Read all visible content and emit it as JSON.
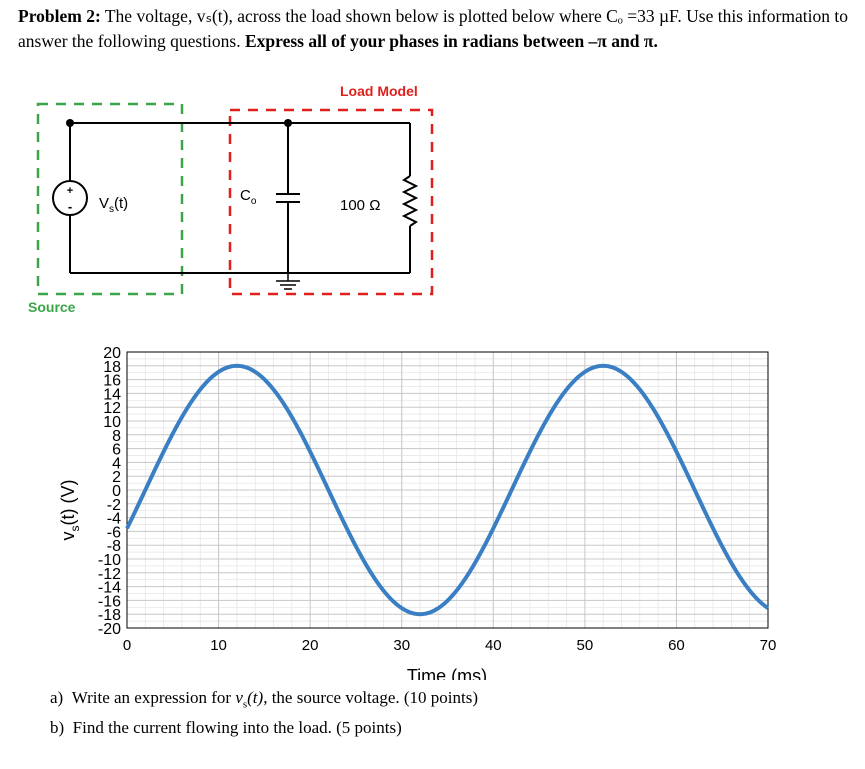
{
  "problem": {
    "label": "Problem 2:",
    "text_before_bold": "The voltage, vₛ(t), across the load shown below is plotted below where Cₒ =33 µF. Use this information to answer the following questions.",
    "bold_text": "Express all of your phases in radians between –π and π."
  },
  "circuit": {
    "load_title": "Load Model",
    "source_label": "Source",
    "source_name": "V",
    "source_sub": "s",
    "source_suffix": "(t)",
    "cap_name": "C",
    "cap_sub": "o",
    "resistor_value": "100 Ω",
    "plus_sign": "+",
    "minus_sign": "-",
    "colors": {
      "source_box": "#3aa64a",
      "load_box": "#e0201c",
      "load_title": "#e0201c",
      "source_label": "#3aa64a"
    }
  },
  "chart_data": {
    "type": "line",
    "xlabel": "Time (ms)",
    "ylabel_main": "v",
    "ylabel_sub": "s",
    "ylabel_suffix": "(t) (V)",
    "xlim": [
      0,
      70
    ],
    "ylim": [
      -20,
      20
    ],
    "x_ticks": [
      "0",
      "10",
      "20",
      "30",
      "40",
      "50",
      "60",
      "70"
    ],
    "y_ticks": [
      "-20",
      "-18",
      "-16",
      "-14",
      "-12",
      "-10",
      "-8",
      "-6",
      "-4",
      "-2",
      "0",
      "2",
      "4",
      "6",
      "8",
      "10",
      "12",
      "14",
      "16",
      "18",
      "20"
    ],
    "grid": true,
    "series": [
      {
        "amplitude": 18,
        "period_ms": 40,
        "peak_time_ms": 12,
        "color": "#3a7fc4"
      }
    ]
  },
  "questions": {
    "a_prefix": "a)",
    "a_text_1": "Write an expression for ",
    "a_var": "v",
    "a_sub": "s",
    "a_arg": "(t)",
    "a_text_2": ", the source voltage. (10 points)",
    "b_prefix": "b)",
    "b_text": "Find the current flowing into the load. (5 points)"
  }
}
